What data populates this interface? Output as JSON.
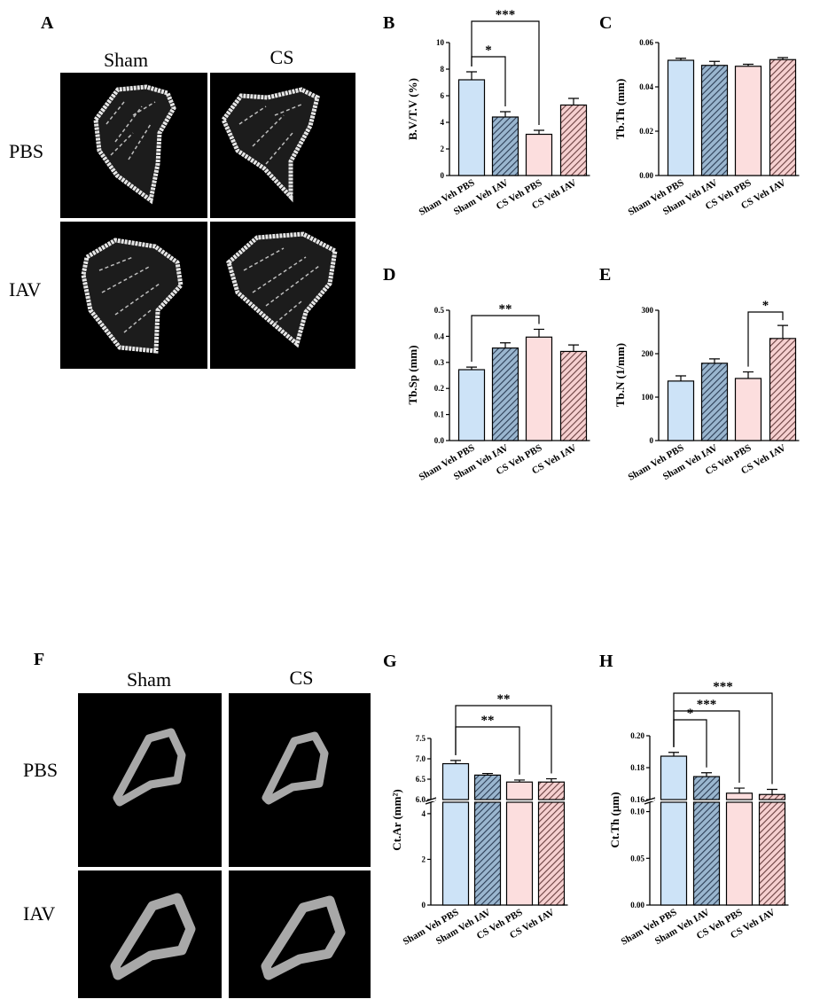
{
  "colors": {
    "sham_pbs": "#cde3f7",
    "sham_iav": "#9ab6cf",
    "cs_pbs": "#fcdede",
    "cs_iav": "#f2c2c2",
    "outline": "#000000"
  },
  "panels": {
    "A": {
      "letter": "A",
      "col1": "Sham",
      "col2": "CS",
      "row1": "PBS",
      "row2": "IAV"
    },
    "F": {
      "letter": "F",
      "col1": "Sham",
      "col2": "CS",
      "row1": "PBS",
      "row2": "IAV"
    },
    "B": {
      "letter": "B"
    },
    "C": {
      "letter": "C"
    },
    "D": {
      "letter": "D"
    },
    "E": {
      "letter": "E"
    },
    "G": {
      "letter": "G"
    },
    "H": {
      "letter": "H"
    }
  },
  "chart_data": [
    {
      "id": "B",
      "type": "bar",
      "categories": [
        "Sham Veh PBS",
        "Sham Veh IAV",
        "CS Veh PBS",
        "CS Veh IAV"
      ],
      "ylabel": "B.V/T.V (%)",
      "yticks": [
        "0",
        "2",
        "4",
        "6",
        "8",
        "10"
      ],
      "ylim": [
        0,
        10
      ],
      "values": [
        7.2,
        4.4,
        3.1,
        5.3
      ],
      "errors": [
        0.6,
        0.4,
        0.3,
        0.5
      ],
      "significance": [
        {
          "from": 0,
          "to": 1,
          "label": "*"
        },
        {
          "from": 0,
          "to": 2,
          "label": "***"
        }
      ]
    },
    {
      "id": "C",
      "type": "bar",
      "categories": [
        "Sham Veh PBS",
        "Sham Veh IAV",
        "CS Veh PBS",
        "CS Veh IAV"
      ],
      "ylabel": "Tb.Th (mm)",
      "yticks": [
        "0.00",
        "0.02",
        "0.04",
        "0.06"
      ],
      "ylim": [
        0,
        0.06
      ],
      "values": [
        0.052,
        0.0497,
        0.0493,
        0.0523
      ],
      "errors": [
        0.0009,
        0.0018,
        0.0009,
        0.0009
      ],
      "significance": []
    },
    {
      "id": "D",
      "type": "bar",
      "categories": [
        "Sham Veh PBS",
        "Sham Veh IAV",
        "CS Veh PBS",
        "CS Veh IAV"
      ],
      "ylabel": "Tb.Sp (mm)",
      "yticks": [
        "0.0",
        "0.1",
        "0.2",
        "0.3",
        "0.4",
        "0.5"
      ],
      "ylim": [
        0,
        0.5
      ],
      "values": [
        0.272,
        0.355,
        0.397,
        0.342
      ],
      "errors": [
        0.01,
        0.02,
        0.03,
        0.025
      ],
      "significance": [
        {
          "from": 0,
          "to": 2,
          "label": "**"
        }
      ]
    },
    {
      "id": "E",
      "type": "bar",
      "categories": [
        "Sham Veh PBS",
        "Sham Veh IAV",
        "CS Veh PBS",
        "CS Veh IAV"
      ],
      "ylabel": "Tb.N (1/mm)",
      "yticks": [
        "0",
        "100",
        "200",
        "300"
      ],
      "ylim": [
        0,
        300
      ],
      "values": [
        137,
        178,
        143,
        235
      ],
      "errors": [
        12,
        10,
        15,
        30
      ],
      "significance": [
        {
          "from": 2,
          "to": 3,
          "label": "*"
        }
      ]
    },
    {
      "id": "G",
      "type": "bar",
      "categories": [
        "Sham Veh PBS",
        "Sham Veh IAV",
        "CS Veh PBS",
        "CS Veh IAV"
      ],
      "ylabel": "Ct.Ar (mm²)",
      "yticks_lower": [
        "0",
        "2",
        "4"
      ],
      "yticks_upper": [
        "6.0",
        "6.5",
        "7.0",
        "7.5"
      ],
      "ylim_lower": [
        0,
        4.5
      ],
      "ylim_upper": [
        6.0,
        7.5
      ],
      "values": [
        6.88,
        6.6,
        6.43,
        6.43
      ],
      "errors": [
        0.08,
        0.04,
        0.05,
        0.08
      ],
      "significance": [
        {
          "from": 0,
          "to": 2,
          "label": "**"
        },
        {
          "from": 0,
          "to": 3,
          "label": "**"
        }
      ]
    },
    {
      "id": "H",
      "type": "bar",
      "categories": [
        "Sham Veh PBS",
        "Sham Veh IAV",
        "CS Veh PBS",
        "CS Veh IAV"
      ],
      "ylabel": "Ct.Th (µm)",
      "yticks_lower": [
        "0.00",
        "0.05",
        "0.10"
      ],
      "yticks_upper": [
        "0.16",
        "0.18",
        "0.20"
      ],
      "ylim_lower": [
        0,
        0.11
      ],
      "ylim_upper": [
        0.15,
        0.2
      ],
      "values": [
        0.184,
        0.168,
        0.155,
        0.154
      ],
      "errors": [
        0.003,
        0.003,
        0.004,
        0.004
      ],
      "significance": [
        {
          "from": 0,
          "to": 1,
          "label": "*"
        },
        {
          "from": 0,
          "to": 2,
          "label": "***"
        },
        {
          "from": 0,
          "to": 3,
          "label": "***"
        }
      ]
    }
  ]
}
